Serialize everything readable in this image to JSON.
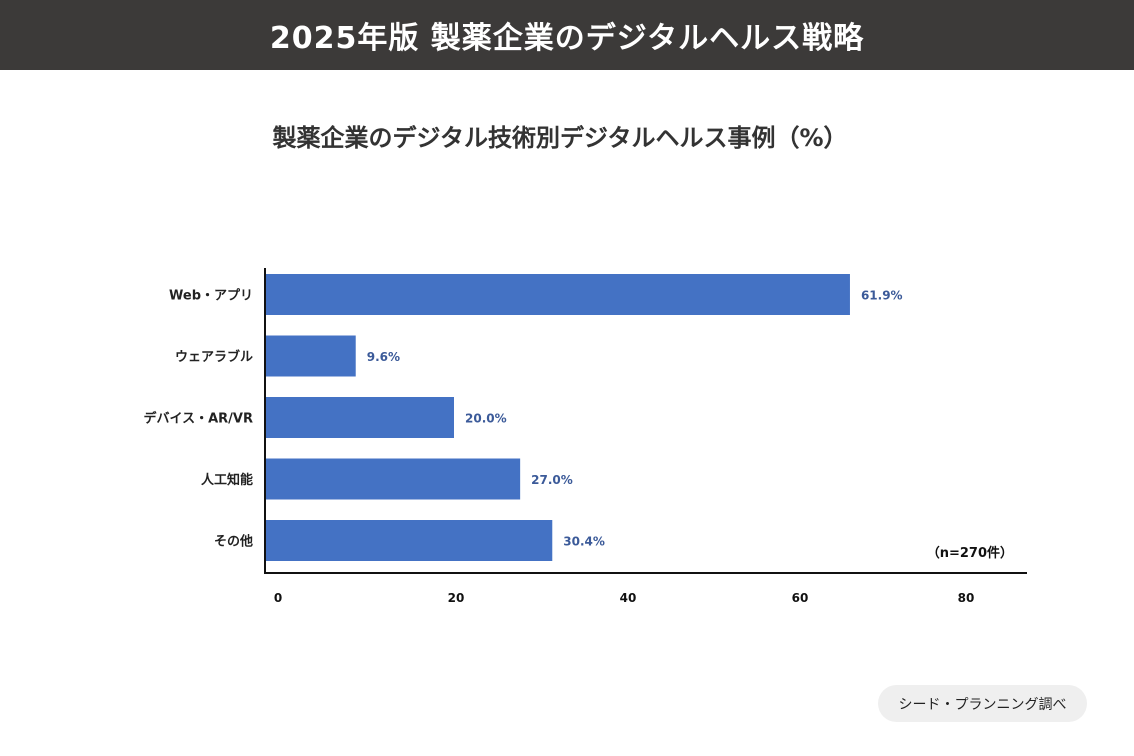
{
  "header": {
    "title": "2025年版 製薬企業のデジタルヘルス戦略"
  },
  "chart_data": {
    "type": "bar",
    "orientation": "horizontal",
    "title": "製薬企業のデジタル技術別デジタルヘルス事例（%）",
    "categories": [
      "Web・アプリ",
      "ウェアラブル",
      "デバイス・AR/VR",
      "人工知能",
      "その他"
    ],
    "values": [
      61.9,
      9.6,
      20.0,
      27.0,
      30.4
    ],
    "value_labels": [
      "61.9%",
      "9.6%",
      "20.0%",
      "27.0%",
      "30.4%"
    ],
    "x_ticks": [
      "0",
      "20",
      "40",
      "60",
      "80"
    ],
    "xlabel": "",
    "ylabel": "",
    "note": "（n=270件）",
    "bar_color": "#4472c4",
    "label_color": "#3b5a99"
  },
  "footer": {
    "source": "シード・プランニング調べ"
  }
}
